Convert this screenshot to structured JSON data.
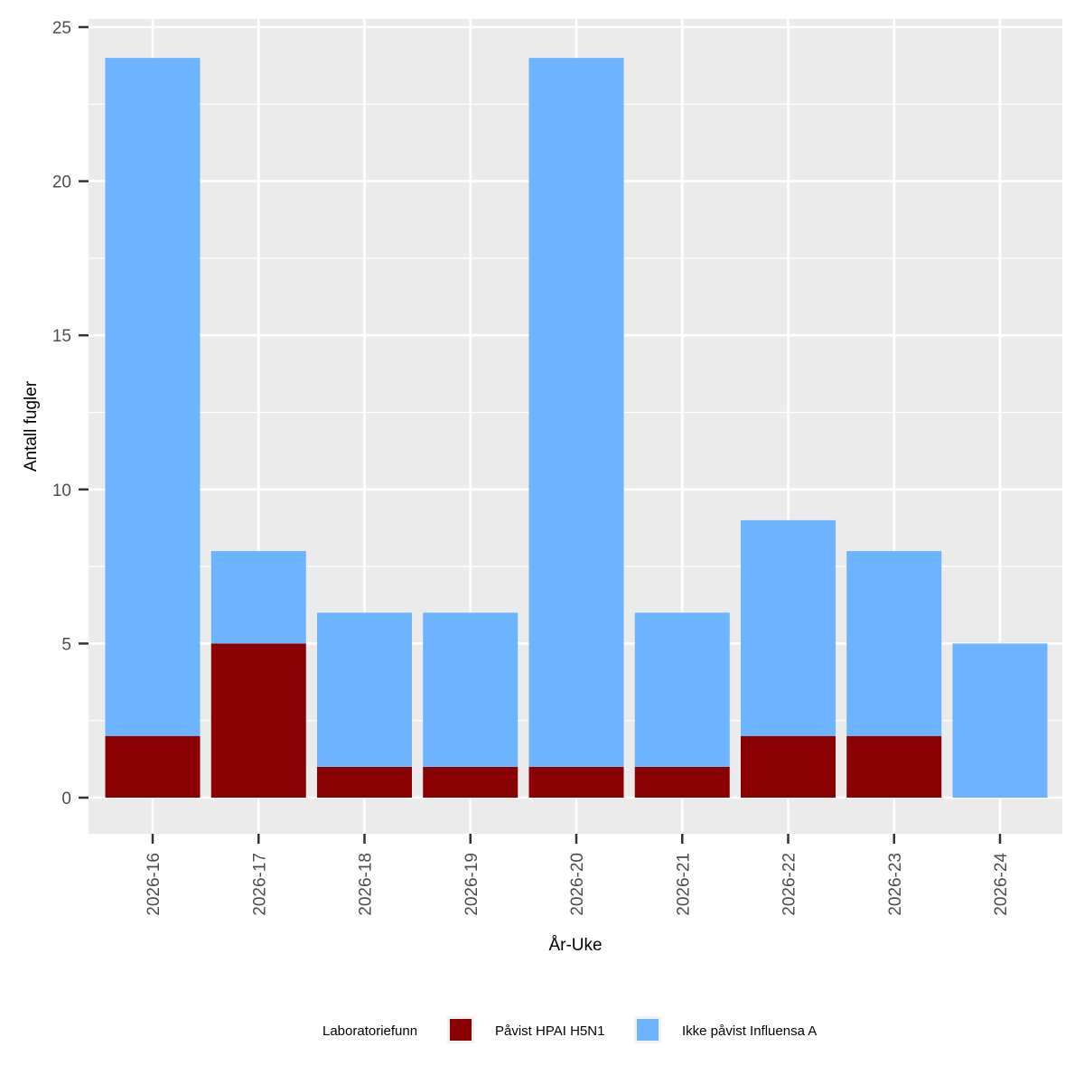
{
  "chart_data": {
    "type": "bar",
    "stacked": true,
    "xlabel": "År-Uke",
    "ylabel": "Antall fugler",
    "ylim": [
      0,
      25
    ],
    "yticks": [
      0,
      5,
      10,
      15,
      20,
      25
    ],
    "grid": true,
    "categories": [
      "2026-16",
      "2026-17",
      "2026-18",
      "2026-19",
      "2026-20",
      "2026-21",
      "2026-22",
      "2026-23",
      "2026-24"
    ],
    "series": [
      {
        "name": "Påvist HPAI H5N1",
        "color": "#8b0000",
        "values": [
          2,
          5,
          1,
          1,
          1,
          1,
          2,
          2,
          0
        ]
      },
      {
        "name": "Ikke påvist Influensa A",
        "color": "#6cb4ff",
        "values": [
          22,
          3,
          5,
          5,
          23,
          5,
          7,
          6,
          5
        ]
      }
    ],
    "legend": {
      "title": "Laboratoriefunn",
      "position": "bottom"
    }
  }
}
